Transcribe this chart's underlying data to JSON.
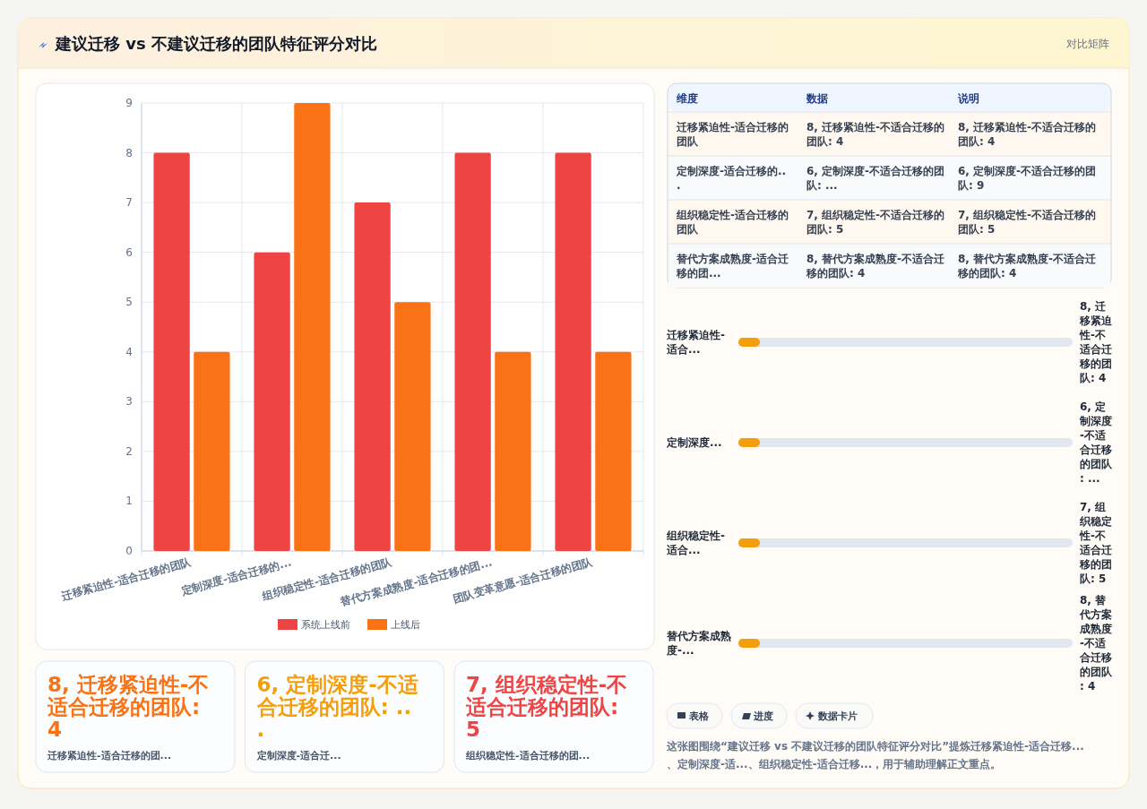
{
  "chart_data": [
    {
      "type": "other",
      "title": "建议迁移 vs 不建议迁移的团队特征评分对比",
      "subtitle": "对比矩阵"
    },
    {
      "type": "bar",
      "categories": [
        "迁移紧迫性-适合迁移的团队",
        "定制深度-适合迁移的...",
        "组织稳定性-适合迁移的团队",
        "替代方案成熟度-适合迁移的团...",
        "团队变革意愿-适合迁移的团队"
      ],
      "series": [
        {
          "name": "系统上线前",
          "color": "#ef4444",
          "values": [
            8,
            6,
            7,
            8,
            8
          ]
        },
        {
          "name": "上线后",
          "color": "#f97316",
          "values": [
            4,
            9,
            5,
            4,
            4
          ]
        }
      ],
      "ylim": [
        0,
        9
      ],
      "yticks": [
        0,
        1,
        2,
        3,
        4,
        5,
        6,
        7,
        8,
        9
      ],
      "grid": true,
      "legend": "bottom"
    },
    {
      "type": "other",
      "annotations": [
        "维度",
        "数据",
        "说明",
        "迁移紧迫性-适合迁移的团队",
        "8, 迁移紧迫性-不适合迁移的团队: 4",
        "8, 迁移紧迫性-不适合迁移的团队: 4",
        "定制深度-适合迁移的...",
        "6, 定制深度-不适合迁移的团队: ...",
        "6, 定制深度-不适合迁移的团队: 9",
        "组织稳定性-适合迁移的团队",
        "7, 组织稳定性-不适合迁移的团队: 5",
        "7, 组织稳定性-不适合迁移的团队: 5",
        "替代方案成熟度-适合迁移的团...",
        "8, 替代方案成熟度-不适合迁移的团队: 4",
        "8, 替代方案成熟度-不适合迁移的团队: 4"
      ]
    },
    {
      "type": "other",
      "annotations": [
        "迁移紧迫性-适合...",
        "8, 迁移紧迫性-不适合迁移的团队: 4",
        "定制深度...",
        "6, 定制深度-不适合迁移的团队: ...",
        "组织稳定性-适合...",
        "7, 组织稳定性-不适合迁移的团队: 5",
        "替代方案成熟度-...",
        "8, 替代方案成熟度-不适合迁移的团队: 4"
      ]
    },
    {
      "type": "other",
      "annotations": [
        "8, 迁移紧迫性-不适合迁移的团队: 4",
        "迁移紧迫性-适合迁移的团...",
        "6, 定制深度-不适合迁移的团队: ...",
        "定制深度-适合迁...",
        "7, 组织稳定性-不适合迁移的团队: 5",
        "组织稳定性-适合迁移的团..."
      ],
      "colors": [
        "#f97316",
        "#f59e0b",
        "#ef4444"
      ]
    },
    {
      "type": "other",
      "annotations": [
        "表格",
        "进度",
        "数据卡片",
        "这张图围绕“建议迁移 vs 不建议迁移的团队特征评分对比”提炼迁移紧迫性-适合迁移...、定制深度-适...、组织稳定性-适合迁移...，用于辅助理解正文重点。"
      ]
    }
  ]
}
